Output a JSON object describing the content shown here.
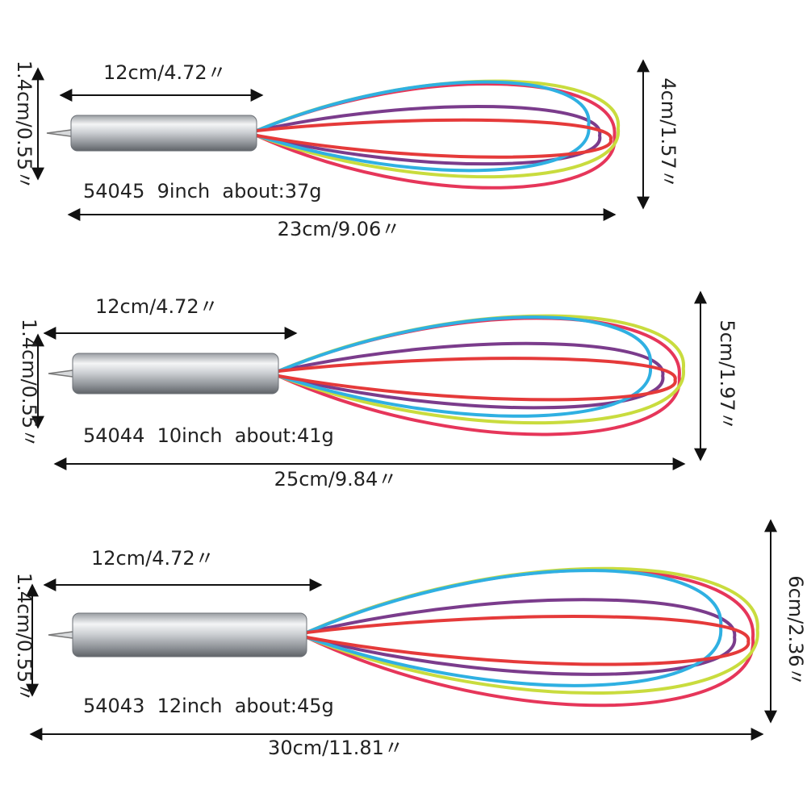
{
  "whiskers": [
    {
      "handle_length": "12cm/4.72〃",
      "handle_diameter": "1.4cm/0.55〃",
      "head_width": "4cm/1.57〃",
      "label": "54045  9inch  about:37g",
      "total_length": "23cm/9.06〃"
    },
    {
      "handle_length": "12cm/4.72〃",
      "handle_diameter": "1.4cm/0.55〃",
      "head_width": "5cm/1.97〃",
      "label": "54044  10inch  about:41g",
      "total_length": "25cm/9.84〃"
    },
    {
      "handle_length": "12cm/4.72〃",
      "handle_diameter": "1.4cm/0.55〃",
      "head_width": "6cm/2.36〃",
      "label": "54043  12inch  about:45g",
      "total_length": "30cm/11.81〃"
    }
  ]
}
